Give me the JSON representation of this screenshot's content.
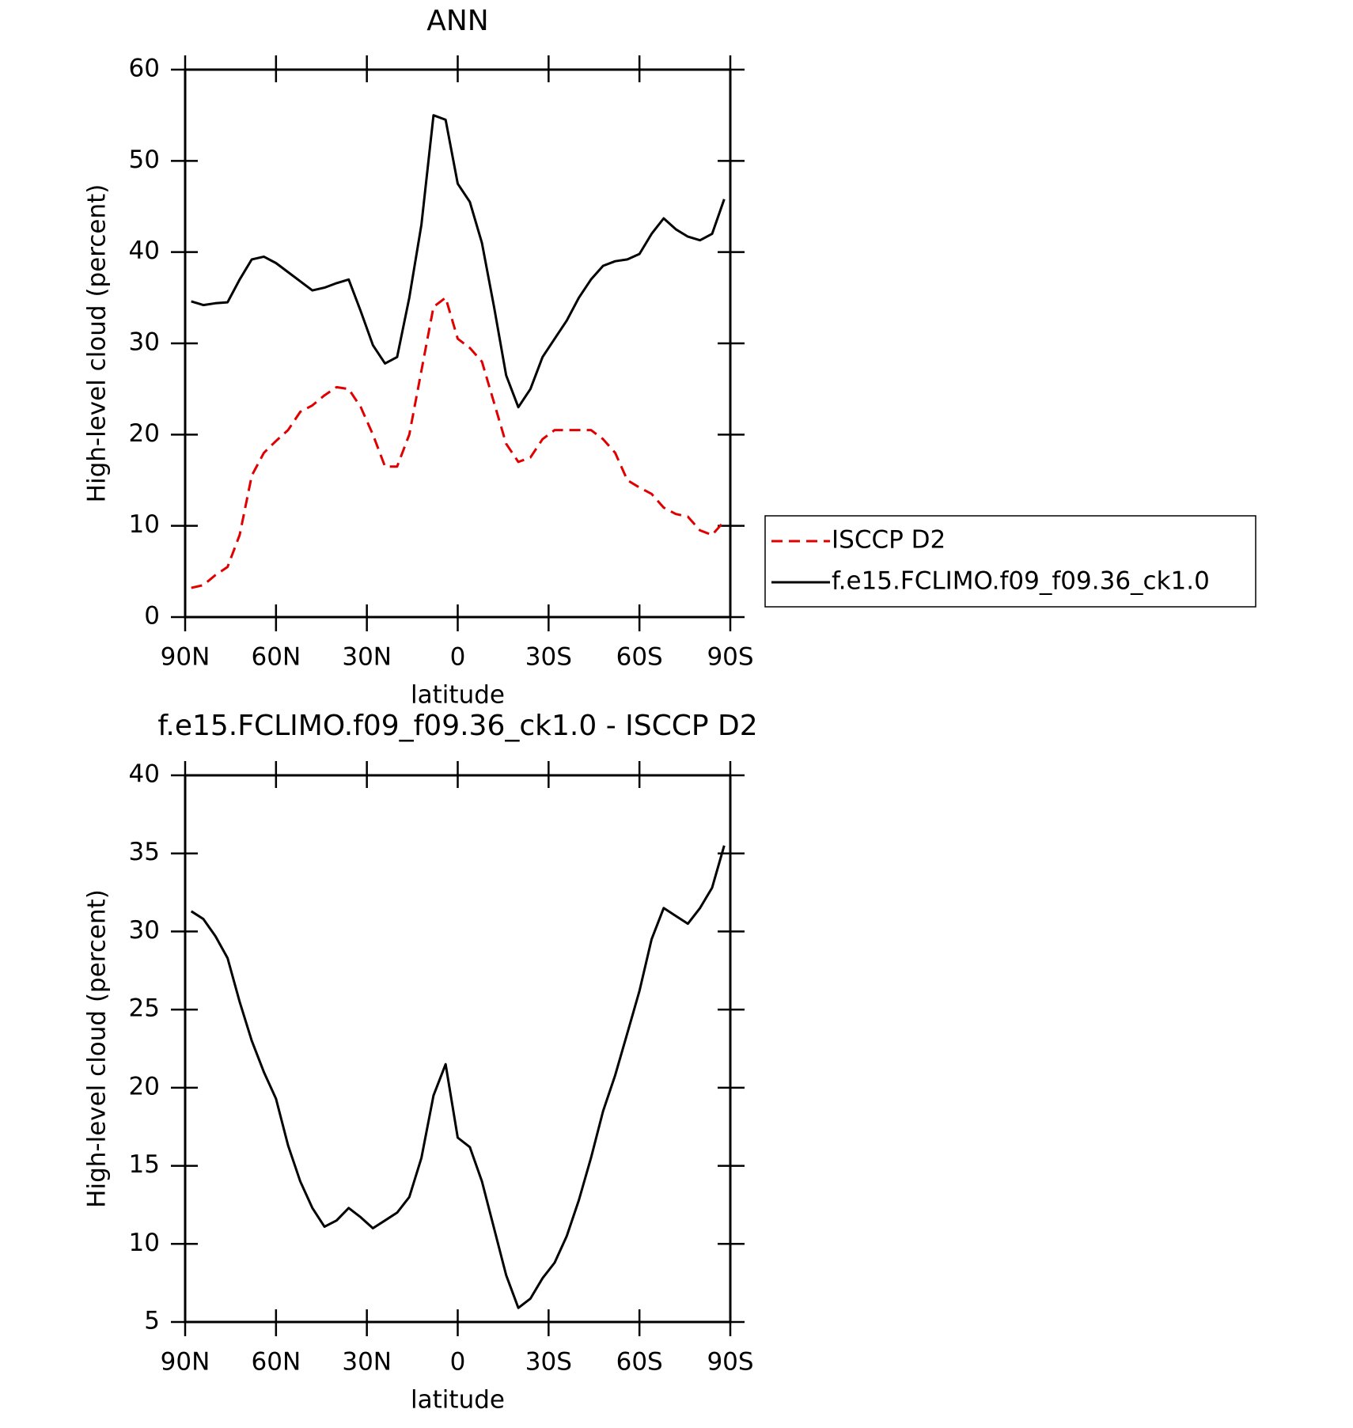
{
  "chart_data": [
    {
      "type": "line",
      "title": "ANN",
      "xlabel": "latitude",
      "ylabel": "High-level cloud (percent)",
      "x": [
        88,
        84,
        80,
        76,
        72,
        68,
        64,
        60,
        56,
        52,
        48,
        44,
        40,
        36,
        32,
        28,
        24,
        20,
        16,
        12,
        8,
        4,
        0,
        -4,
        -8,
        -12,
        -16,
        -20,
        -24,
        -28,
        -32,
        -36,
        -40,
        -44,
        -48,
        -52,
        -56,
        -60,
        -64,
        -68,
        -72,
        -76,
        -80,
        -84,
        -88
      ],
      "series": [
        {
          "name": "ISCCP D2",
          "color": "#e00000",
          "dash": true,
          "values": [
            3.2,
            3.5,
            4.6,
            5.5,
            9,
            15.5,
            18,
            19.3,
            20.5,
            22.5,
            23.2,
            24.3,
            25.2,
            25,
            23,
            20,
            16.5,
            16.5,
            20,
            27,
            34,
            35,
            30.5,
            29.5,
            28,
            23.5,
            19,
            17,
            17.5,
            19.5,
            20.5,
            20.5,
            20.5,
            20.5,
            19.5,
            18,
            15,
            14.2,
            13.5,
            12,
            11.3,
            11,
            9.5,
            9,
            10.5
          ]
        },
        {
          "name": "f.e15.FCLIMO.f09_f09.36_ck1.0",
          "color": "#000000",
          "dash": false,
          "values": [
            34.6,
            34.2,
            34.4,
            34.5,
            37,
            39.2,
            39.5,
            38.8,
            37.8,
            36.8,
            35.8,
            36.1,
            36.6,
            37,
            33.5,
            29.8,
            27.8,
            28.5,
            35,
            43,
            55,
            54.5,
            47.5,
            45.5,
            41,
            34,
            26.5,
            23,
            25,
            28.5,
            30.5,
            32.5,
            35,
            37,
            38.5,
            39,
            39.2,
            39.8,
            42,
            43.7,
            42.5,
            41.7,
            41.3,
            42,
            45.8
          ]
        }
      ],
      "xlim": [
        90,
        -90
      ],
      "xticks": [
        {
          "value": 90,
          "label": "90N"
        },
        {
          "value": 60,
          "label": "60N"
        },
        {
          "value": 30,
          "label": "30N"
        },
        0,
        {
          "value": -30,
          "label": "30S"
        },
        {
          "value": -60,
          "label": "60S"
        },
        {
          "value": -90,
          "label": "90S"
        }
      ],
      "ylim": [
        0,
        60
      ],
      "yticks": [
        0,
        10,
        20,
        30,
        40,
        50,
        60
      ],
      "legend": "outside-right"
    },
    {
      "type": "line",
      "title": "f.e15.FCLIMO.f09_f09.36_ck1.0 - ISCCP D2",
      "xlabel": "latitude",
      "ylabel": "High-level cloud (percent)",
      "x": [
        88,
        84,
        80,
        76,
        72,
        68,
        64,
        60,
        56,
        52,
        48,
        44,
        40,
        36,
        32,
        28,
        24,
        20,
        16,
        12,
        8,
        4,
        0,
        -4,
        -8,
        -12,
        -16,
        -20,
        -24,
        -28,
        -32,
        -36,
        -40,
        -44,
        -48,
        -52,
        -56,
        -60,
        -64,
        -68,
        -72,
        -76,
        -80,
        -84,
        -88
      ],
      "series": [
        {
          "color": "#000000",
          "dash": false,
          "values": [
            31.3,
            30.8,
            29.7,
            28.3,
            25.5,
            23,
            21,
            19.3,
            16.3,
            14,
            12.3,
            11.1,
            11.5,
            12.3,
            11.7,
            11,
            11.5,
            12,
            13,
            15.5,
            19.5,
            21.5,
            16.8,
            16.2,
            14,
            11,
            8,
            5.9,
            6.5,
            7.8,
            8.8,
            10.5,
            12.8,
            15.5,
            18.5,
            20.8,
            23.5,
            26.2,
            29.5,
            31.5,
            31,
            30.5,
            31.5,
            32.8,
            35.5
          ]
        }
      ],
      "xlim": [
        90,
        -90
      ],
      "xticks": [
        {
          "value": 90,
          "label": "90N"
        },
        {
          "value": 60,
          "label": "60N"
        },
        {
          "value": 30,
          "label": "30N"
        },
        0,
        {
          "value": -30,
          "label": "30S"
        },
        {
          "value": -60,
          "label": "60S"
        },
        {
          "value": -90,
          "label": "90S"
        }
      ],
      "ylim": [
        5,
        40
      ],
      "yticks": [
        5,
        10,
        15,
        20,
        25,
        30,
        35,
        40
      ]
    }
  ]
}
